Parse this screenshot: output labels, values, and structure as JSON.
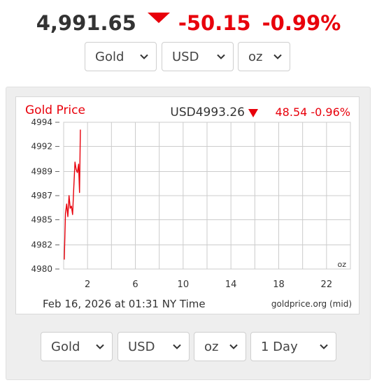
{
  "ticker": {
    "price": "4,991.65",
    "change": "-50.15",
    "change_pct": "-0.99%",
    "direction": "down",
    "down_color": "#e8000b"
  },
  "top_selectors": {
    "metal": "Gold",
    "currency": "USD",
    "unit": "oz"
  },
  "bottom_selectors": {
    "metal": "Gold",
    "currency": "USD",
    "unit": "oz",
    "range": "1 Day"
  },
  "chart_data": {
    "type": "line",
    "title": "Gold Price",
    "header_quote": "USD4993.26",
    "header_change": "48.54 -0.96%",
    "unit_label": "oz",
    "footer_left": "Feb 16, 2026 at 01:31 NY Time",
    "footer_right": "goldprice.org (mid)",
    "line_color": "#e8000b",
    "grid": true,
    "xlim": [
      0,
      24
    ],
    "ylim": [
      4980,
      4994
    ],
    "x_ticks": [
      2,
      6,
      10,
      14,
      18,
      22
    ],
    "y_ticks": [
      {
        "value": 4980.0,
        "label": "4980"
      },
      {
        "value": 4982.3,
        "label": "4982"
      },
      {
        "value": 4984.7,
        "label": "4985"
      },
      {
        "value": 4987.0,
        "label": "4987"
      },
      {
        "value": 4989.3,
        "label": "4989"
      },
      {
        "value": 4991.7,
        "label": "4992"
      },
      {
        "value": 4994.0,
        "label": "4994"
      }
    ],
    "series": [
      {
        "x": [
          0.05,
          0.15,
          0.25,
          0.35,
          0.45,
          0.55,
          0.65,
          0.75,
          0.85,
          0.95,
          1.05,
          1.15,
          1.25,
          1.33,
          1.4
        ],
        "y": [
          4980.9,
          4985.3,
          4986.2,
          4985.0,
          4987.0,
          4985.8,
          4986.0,
          4985.2,
          4987.8,
          4990.2,
          4989.5,
          4989.2,
          4990.0,
          4987.3,
          4993.3
        ]
      }
    ]
  }
}
